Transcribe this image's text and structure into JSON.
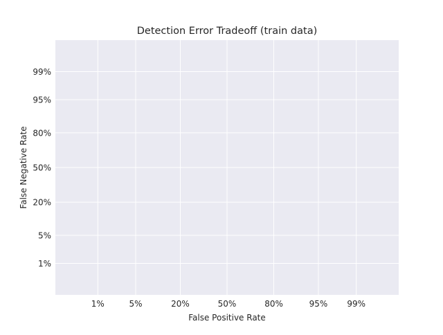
{
  "chart_data": {
    "type": "line",
    "title": "Detection Error Tradeoff (train data)",
    "xlabel": "False Positive Rate",
    "ylabel": "False Negative Rate",
    "scale": "normal-deviate (probit)",
    "xlim": [
      "0.1%",
      "99.9%"
    ],
    "ylim": [
      "0.1%",
      "99.9%"
    ],
    "x_ticks": [
      {
        "label": "1%",
        "value": 0.01
      },
      {
        "label": "5%",
        "value": 0.05
      },
      {
        "label": "20%",
        "value": 0.2
      },
      {
        "label": "50%",
        "value": 0.5
      },
      {
        "label": "80%",
        "value": 0.8
      },
      {
        "label": "95%",
        "value": 0.95
      },
      {
        "label": "99%",
        "value": 0.99
      }
    ],
    "y_ticks": [
      {
        "label": "1%",
        "value": 0.01
      },
      {
        "label": "5%",
        "value": 0.05
      },
      {
        "label": "20%",
        "value": 0.2
      },
      {
        "label": "50%",
        "value": 0.5
      },
      {
        "label": "80%",
        "value": 0.8
      },
      {
        "label": "95%",
        "value": 0.95
      },
      {
        "label": "99%",
        "value": 0.99
      }
    ],
    "grid": true,
    "background_color": "#eaeaf2",
    "grid_color": "#ffffff",
    "series": []
  }
}
